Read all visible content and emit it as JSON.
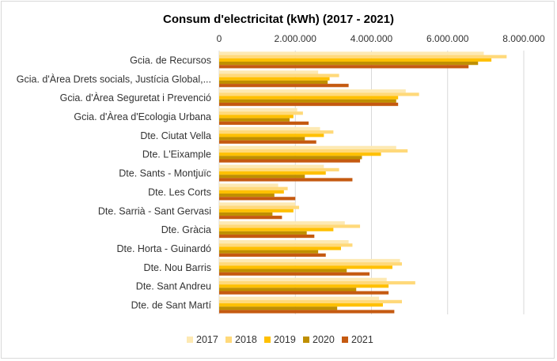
{
  "chart_data": {
    "type": "bar",
    "orientation": "horizontal",
    "title": "Consum d'electricitat (kWh) (2017 - 2021)",
    "xlabel": "",
    "ylabel": "",
    "xlim": [
      0,
      8000000
    ],
    "x_ticks": [
      0,
      2000000,
      4000000,
      6000000,
      8000000
    ],
    "x_tick_labels": [
      "0",
      "2.000.000",
      "4.000.000",
      "6.000.000",
      "8.000.000"
    ],
    "grid": true,
    "legend_position": "bottom",
    "categories": [
      "Gcia. de Recursos",
      "Gcia. d'Àrea Drets socials, Justícia Global,...",
      "Gcia. d'Àrea Seguretat i Prevenció",
      "Gcia. d'Àrea d'Ecologia Urbana",
      "Dte. Ciutat Vella",
      "Dte. L'Eixample",
      "Dte. Sants - Montjuïc",
      "Dte. Les Corts",
      "Dte. Sarrià - Sant Gervasi",
      "Dte. Gràcia",
      "Dte. Horta - Guinardó",
      "Dte. Nou Barris",
      "Dte. Sant Andreu",
      "Dte. de Sant Martí"
    ],
    "series": [
      {
        "name": "2017",
        "color": "#fde9b3",
        "values": [
          6950000,
          2600000,
          4900000,
          2050000,
          2650000,
          4650000,
          2750000,
          1550000,
          2000000,
          3300000,
          3400000,
          4750000,
          4400000,
          4200000
        ]
      },
      {
        "name": "2018",
        "color": "#ffd97a",
        "values": [
          7550000,
          3150000,
          5250000,
          2200000,
          3000000,
          4950000,
          3150000,
          1800000,
          2100000,
          3700000,
          3500000,
          4800000,
          5150000,
          4800000
        ]
      },
      {
        "name": "2019",
        "color": "#ffc000",
        "values": [
          7150000,
          2900000,
          4700000,
          1950000,
          2750000,
          4250000,
          2800000,
          1700000,
          1950000,
          3000000,
          3200000,
          4550000,
          4450000,
          4300000
        ]
      },
      {
        "name": "2020",
        "color": "#bf8f00",
        "values": [
          6800000,
          2850000,
          4650000,
          1850000,
          2250000,
          3750000,
          2250000,
          1450000,
          1400000,
          2300000,
          2600000,
          3350000,
          3600000,
          3100000
        ]
      },
      {
        "name": "2021",
        "color": "#c55a11",
        "values": [
          6550000,
          3400000,
          4700000,
          2350000,
          2550000,
          3700000,
          3500000,
          2000000,
          1650000,
          2500000,
          2800000,
          3950000,
          4450000,
          4600000
        ]
      }
    ]
  }
}
